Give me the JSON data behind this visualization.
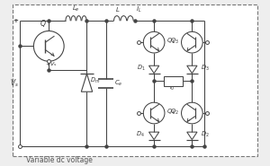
{
  "bg_color": "#eeeeee",
  "circuit_bg": "#ffffff",
  "line_color": "#444444",
  "text_color": "#333333",
  "title_text": "Variable dc voltage",
  "fig_width": 3.0,
  "fig_height": 1.85,
  "dpi": 100,
  "lw": 0.75
}
